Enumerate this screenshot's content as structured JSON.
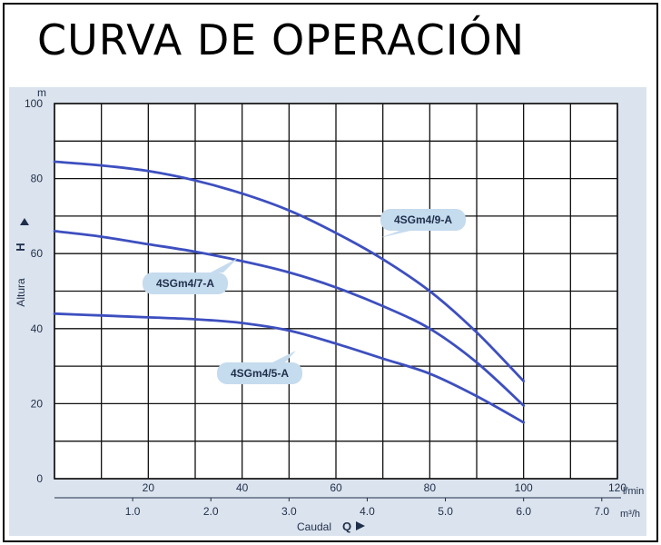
{
  "title": "CURVA DE OPERACIÓN",
  "colors": {
    "curve": "#3d4fbf",
    "callout_fill": "#c5dbee",
    "grid": "#111111",
    "panel": "#dbe3ee"
  },
  "chart_data": {
    "type": "line",
    "title": "",
    "xlabel": "Caudal",
    "xlabel_symbol": "Q",
    "xunit_primary": "l/min",
    "xunit_secondary": "m³/h",
    "ylabel": "Altura",
    "ylabel_symbol": "H",
    "yunit": "m",
    "xlim": [
      0,
      120
    ],
    "ylim": [
      0,
      100
    ],
    "grid": true,
    "x_ticks": [
      "20",
      "40",
      "60",
      "80",
      "100",
      "120"
    ],
    "x_secondary_ticks": [
      "1.0",
      "2.0",
      "3.0",
      "4.0",
      "5.0",
      "6.0",
      "7.0"
    ],
    "y_ticks": [
      "0",
      "20",
      "40",
      "60",
      "80",
      "100"
    ],
    "series": [
      {
        "name": "4SGm4/9-A",
        "x": [
          0,
          10,
          20,
          30,
          40,
          50,
          60,
          70,
          80,
          90,
          100
        ],
        "y": [
          84.5,
          83.5,
          82,
          79.5,
          76,
          71.5,
          65.5,
          58.5,
          50,
          39,
          26
        ]
      },
      {
        "name": "4SGm4/7-A",
        "x": [
          0,
          10,
          20,
          30,
          40,
          50,
          60,
          70,
          80,
          90,
          100
        ],
        "y": [
          66,
          64.5,
          62.5,
          60.5,
          58,
          55,
          51,
          46,
          40,
          31,
          19.5
        ]
      },
      {
        "name": "4SGm4/5-A",
        "x": [
          0,
          10,
          20,
          30,
          40,
          50,
          60,
          70,
          80,
          90,
          100
        ],
        "y": [
          44,
          43.5,
          43,
          42.5,
          41.5,
          39.5,
          36,
          32,
          28,
          22,
          15
        ]
      }
    ]
  }
}
